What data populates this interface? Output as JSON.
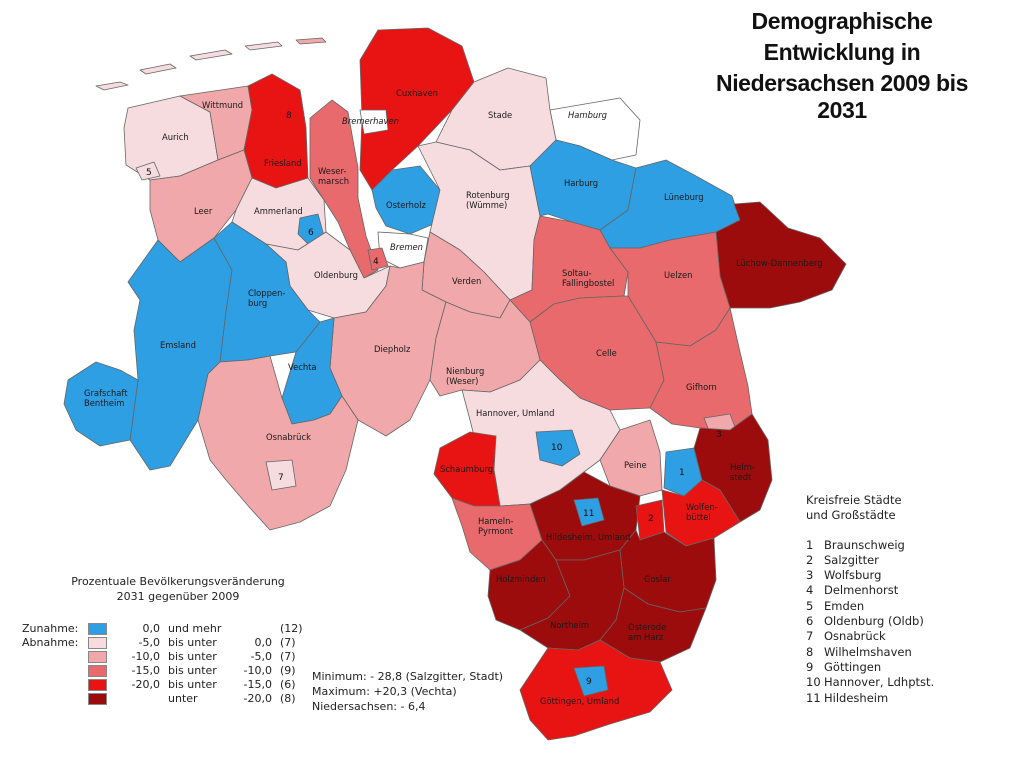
{
  "title": {
    "line1": "Demographische",
    "line2": "Entwicklung in",
    "line3": "Niedersachsen 2009 bis",
    "line4": "2031"
  },
  "colors": {
    "increase": "#2e9fe2",
    "c1": "#f6dcde",
    "c2": "#f0a8aa",
    "c3": "#e86a6c",
    "c4": "#e81414",
    "c5": "#9c0c0c",
    "neutral": "#ffffff",
    "outline": "#555555"
  },
  "regions": {
    "wittmund": "Wittmund",
    "aurich": "Aurich",
    "friesland": "Friesland",
    "wesermarsch": "Weser-\nmarsch",
    "cuxhaven": "Cuxhaven",
    "bremerhaven": "Bremerhaven",
    "stade": "Stade",
    "hamburg": "Hamburg",
    "leer": "Leer",
    "ammerland": "Ammerland",
    "osterholz": "Osterholz",
    "rotenburg": "Rotenburg\n(Wümme)",
    "harburg": "Harburg",
    "lueneburg": "Lüneburg",
    "bremen": "Bremen",
    "luechow": "Lüchow-Dannenberg",
    "oldenburg": "Oldenburg",
    "verden": "Verden",
    "soltau": "Soltau-\nFallingbostel",
    "uelzen": "Uelzen",
    "emsland": "Emsland",
    "cloppenburg": "Cloppen-\nburg",
    "diepholz": "Diepholz",
    "celle": "Celle",
    "vechta": "Vechta",
    "nienburg": "Nienburg\n(Weser)",
    "gifhorn": "Gifhorn",
    "grafschaft": "Grafschaft\nBentheim",
    "hannover": "Hannover, Umland",
    "osnabrueck": "Osnabrück",
    "schaumburg": "Schaumburg",
    "peine": "Peine",
    "helmstedt": "Helm-\nstedt",
    "hameln": "Hameln-\nPyrmont",
    "hildesheim": "Hildesheim, Umland",
    "wolfenbuettel": "Wolfen-\nbüttel",
    "holzminden": "Holzminden",
    "goslar": "Goslar",
    "northeim": "Northeim",
    "osterode": "Osterode\nam Harz",
    "goettingen": "Göttingen, Umland"
  },
  "numbers": {
    "n1": "1",
    "n2": "2",
    "n3": "3",
    "n4": "4",
    "n5": "5",
    "n6": "6",
    "n7": "7",
    "n8": "8",
    "n9": "9",
    "n10": "10",
    "n11": "11"
  },
  "legend": {
    "title_line1": "Prozentuale Bevölkerungsveränderung",
    "title_line2": "2031 gegenüber 2009",
    "increase_label": "Zunahme:",
    "decrease_label": "Abnahme:",
    "rows": [
      {
        "a": "0,0",
        "op": "und mehr",
        "b": "",
        "count": "(12)",
        "color": "#2e9fe2"
      },
      {
        "a": "-5,0",
        "op": "bis unter",
        "b": "0,0",
        "count": "(7)",
        "color": "#f6dcde"
      },
      {
        "a": "-10,0",
        "op": "bis unter",
        "b": "-5,0",
        "count": "(7)",
        "color": "#f0a8aa"
      },
      {
        "a": "-15,0",
        "op": "bis unter",
        "b": "-10,0",
        "count": "(9)",
        "color": "#e86a6c"
      },
      {
        "a": "-20,0",
        "op": "bis unter",
        "b": "-15,0",
        "count": "(6)",
        "color": "#e81414"
      },
      {
        "a": "",
        "op": "unter",
        "b": "-20,0",
        "count": "(8)",
        "color": "#9c0c0c"
      }
    ]
  },
  "stats": {
    "minimum": "Minimum: - 28,8 (Salzgitter, Stadt)",
    "maximum": "Maximum: +20,3 (Vechta)",
    "niedersachsen": "Niedersachsen: - 6,4"
  },
  "cities": {
    "title_line1": "Kreisfreie Städte",
    "title_line2": "und Großstädte",
    "items": [
      {
        "n": "1",
        "name": "Braunschweig"
      },
      {
        "n": "2",
        "name": "Salzgitter"
      },
      {
        "n": "3",
        "name": "Wolfsburg"
      },
      {
        "n": "4",
        "name": "Delmenhorst"
      },
      {
        "n": "5",
        "name": "Emden"
      },
      {
        "n": "6",
        "name": "Oldenburg (Oldb)"
      },
      {
        "n": "7",
        "name": "Osnabrück"
      },
      {
        "n": "8",
        "name": "Wilhelmshaven"
      },
      {
        "n": "9",
        "name": "Göttingen"
      },
      {
        "n": "10",
        "name": "Hannover, Ldhptst."
      },
      {
        "n": "11",
        "name": "Hildesheim"
      }
    ]
  }
}
